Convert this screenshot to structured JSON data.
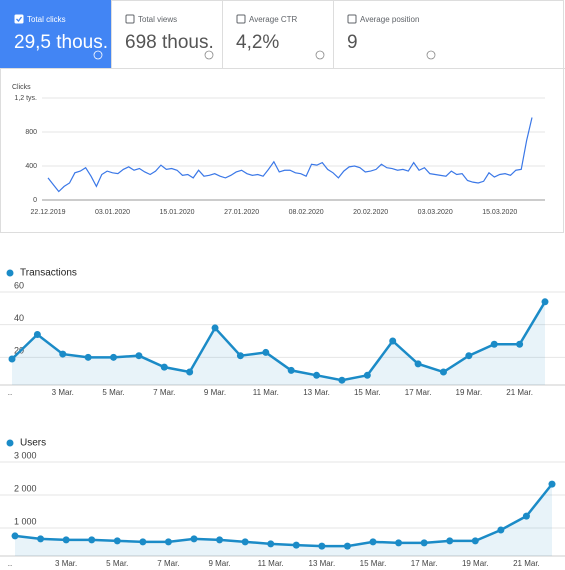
{
  "cards": [
    {
      "label": "Total clicks",
      "value": "29,5 thous."
    },
    {
      "label": "Total views",
      "value": "698 thous."
    },
    {
      "label": "Average CTR",
      "value": "4,2%"
    },
    {
      "label": "Average position",
      "value": "9"
    }
  ],
  "chart_data": [
    {
      "type": "line",
      "y_label": "Clicks",
      "color": "#3b78e7",
      "grid": true,
      "categories": [
        "22.12.2019",
        null,
        null,
        null,
        null,
        null,
        null,
        null,
        null,
        null,
        null,
        null,
        "03.01.2020",
        null,
        null,
        null,
        null,
        null,
        null,
        null,
        null,
        null,
        null,
        null,
        "15.01.2020",
        null,
        null,
        null,
        null,
        null,
        null,
        null,
        null,
        null,
        null,
        null,
        "27.01.2020",
        null,
        null,
        null,
        null,
        null,
        null,
        null,
        null,
        null,
        null,
        null,
        "08.02.2020",
        null,
        null,
        null,
        null,
        null,
        null,
        null,
        null,
        null,
        null,
        null,
        "20.02.2020",
        null,
        null,
        null,
        null,
        null,
        null,
        null,
        null,
        null,
        null,
        null,
        "03.03.2020",
        null,
        null,
        null,
        null,
        null,
        null,
        null,
        null,
        null,
        null,
        null,
        "15.03.2020",
        null,
        null,
        null,
        null,
        null,
        null
      ],
      "values": [
        260,
        180,
        100,
        160,
        200,
        320,
        340,
        380,
        280,
        160,
        300,
        340,
        320,
        310,
        360,
        390,
        350,
        370,
        330,
        300,
        340,
        410,
        360,
        370,
        350,
        290,
        300,
        260,
        350,
        280,
        290,
        310,
        280,
        260,
        290,
        330,
        350,
        310,
        290,
        300,
        280,
        360,
        450,
        330,
        350,
        350,
        320,
        310,
        280,
        420,
        410,
        440,
        360,
        320,
        260,
        340,
        390,
        400,
        380,
        330,
        340,
        360,
        420,
        380,
        370,
        350,
        360,
        340,
        440,
        350,
        380,
        310,
        300,
        290,
        280,
        340,
        300,
        310,
        230,
        210,
        200,
        220,
        320,
        270,
        300,
        310,
        290,
        350,
        360,
        700,
        970
      ],
      "ylim": [
        0,
        1200
      ],
      "yticks": [
        0,
        400,
        800,
        {
          "value": 1200,
          "label": "1,2 tys."
        }
      ]
    },
    {
      "type": "area",
      "title": "Transactions",
      "color": "#1b8bc7",
      "grid": true,
      "categories": [
        "..",
        null,
        "3 Mar.",
        null,
        "5 Mar.",
        null,
        "7 Mar.",
        null,
        "9 Mar.",
        null,
        "11 Mar.",
        null,
        "13 Mar.",
        null,
        "15 Mar.",
        null,
        "17 Mar.",
        null,
        "19 Mar.",
        null,
        "21 Mar.",
        null
      ],
      "values": [
        19,
        34,
        22,
        20,
        20,
        21,
        14,
        11,
        38,
        21,
        23,
        12,
        9,
        6,
        9,
        30,
        16,
        11,
        21,
        28,
        28,
        54
      ],
      "ylim": [
        0,
        60
      ],
      "yticks": [
        20,
        40,
        60
      ]
    },
    {
      "type": "area",
      "title": "Users",
      "color": "#1b8bc7",
      "grid": true,
      "categories": [
        "..",
        null,
        "3 Mar.",
        null,
        "5 Mar.",
        null,
        "7 Mar.",
        null,
        "9 Mar.",
        null,
        "11 Mar.",
        null,
        "13 Mar.",
        null,
        "15 Mar.",
        null,
        "17 Mar.",
        null,
        "19 Mar.",
        null,
        "21 Mar.",
        null
      ],
      "values": [
        760,
        670,
        640,
        640,
        610,
        580,
        580,
        670,
        640,
        580,
        520,
        480,
        450,
        450,
        580,
        550,
        550,
        610,
        610,
        940,
        1360,
        2330
      ],
      "ylim": [
        0,
        3000
      ],
      "yticks": [
        {
          "value": 1000,
          "label": "1 000"
        },
        {
          "value": 2000,
          "label": "2 000"
        },
        {
          "value": 3000,
          "label": "3 000"
        }
      ]
    }
  ]
}
